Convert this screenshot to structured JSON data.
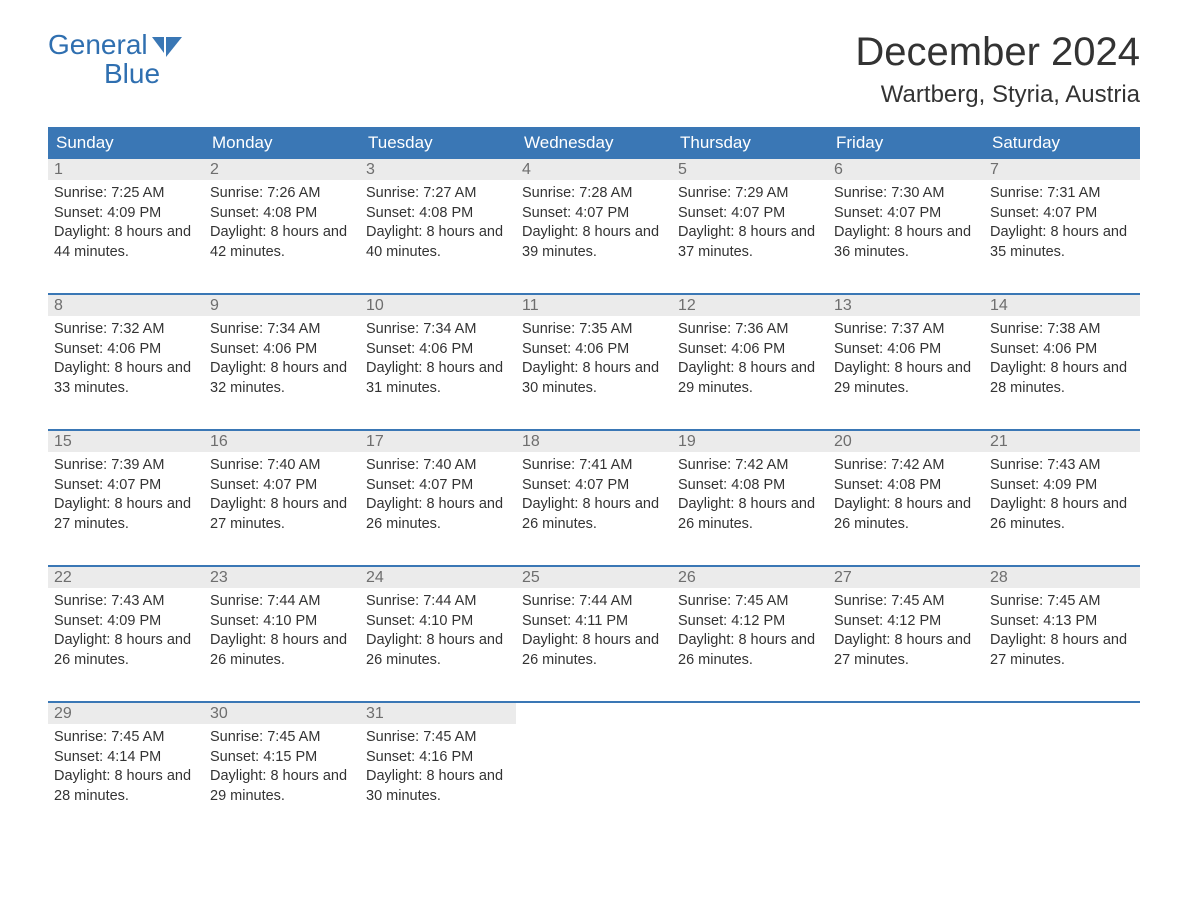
{
  "brand": {
    "line1": "General",
    "line2": "Blue",
    "accent": "#3a77b5"
  },
  "title": "December 2024",
  "location": "Wartberg, Styria, Austria",
  "colors": {
    "header_bg": "#3a77b5",
    "header_text": "#ffffff",
    "daynum_bg": "#ebebeb",
    "daynum_text": "#6e6e6e",
    "body_bg": "#ffffff",
    "body_text": "#333333",
    "week_divider": "#3a77b5"
  },
  "dow": [
    "Sunday",
    "Monday",
    "Tuesday",
    "Wednesday",
    "Thursday",
    "Friday",
    "Saturday"
  ],
  "weeks": [
    [
      {
        "n": "1",
        "sunrise": "7:25 AM",
        "sunset": "4:09 PM",
        "dl": "8 hours and 44 minutes."
      },
      {
        "n": "2",
        "sunrise": "7:26 AM",
        "sunset": "4:08 PM",
        "dl": "8 hours and 42 minutes."
      },
      {
        "n": "3",
        "sunrise": "7:27 AM",
        "sunset": "4:08 PM",
        "dl": "8 hours and 40 minutes."
      },
      {
        "n": "4",
        "sunrise": "7:28 AM",
        "sunset": "4:07 PM",
        "dl": "8 hours and 39 minutes."
      },
      {
        "n": "5",
        "sunrise": "7:29 AM",
        "sunset": "4:07 PM",
        "dl": "8 hours and 37 minutes."
      },
      {
        "n": "6",
        "sunrise": "7:30 AM",
        "sunset": "4:07 PM",
        "dl": "8 hours and 36 minutes."
      },
      {
        "n": "7",
        "sunrise": "7:31 AM",
        "sunset": "4:07 PM",
        "dl": "8 hours and 35 minutes."
      }
    ],
    [
      {
        "n": "8",
        "sunrise": "7:32 AM",
        "sunset": "4:06 PM",
        "dl": "8 hours and 33 minutes."
      },
      {
        "n": "9",
        "sunrise": "7:34 AM",
        "sunset": "4:06 PM",
        "dl": "8 hours and 32 minutes."
      },
      {
        "n": "10",
        "sunrise": "7:34 AM",
        "sunset": "4:06 PM",
        "dl": "8 hours and 31 minutes."
      },
      {
        "n": "11",
        "sunrise": "7:35 AM",
        "sunset": "4:06 PM",
        "dl": "8 hours and 30 minutes."
      },
      {
        "n": "12",
        "sunrise": "7:36 AM",
        "sunset": "4:06 PM",
        "dl": "8 hours and 29 minutes."
      },
      {
        "n": "13",
        "sunrise": "7:37 AM",
        "sunset": "4:06 PM",
        "dl": "8 hours and 29 minutes."
      },
      {
        "n": "14",
        "sunrise": "7:38 AM",
        "sunset": "4:06 PM",
        "dl": "8 hours and 28 minutes."
      }
    ],
    [
      {
        "n": "15",
        "sunrise": "7:39 AM",
        "sunset": "4:07 PM",
        "dl": "8 hours and 27 minutes."
      },
      {
        "n": "16",
        "sunrise": "7:40 AM",
        "sunset": "4:07 PM",
        "dl": "8 hours and 27 minutes."
      },
      {
        "n": "17",
        "sunrise": "7:40 AM",
        "sunset": "4:07 PM",
        "dl": "8 hours and 26 minutes."
      },
      {
        "n": "18",
        "sunrise": "7:41 AM",
        "sunset": "4:07 PM",
        "dl": "8 hours and 26 minutes."
      },
      {
        "n": "19",
        "sunrise": "7:42 AM",
        "sunset": "4:08 PM",
        "dl": "8 hours and 26 minutes."
      },
      {
        "n": "20",
        "sunrise": "7:42 AM",
        "sunset": "4:08 PM",
        "dl": "8 hours and 26 minutes."
      },
      {
        "n": "21",
        "sunrise": "7:43 AM",
        "sunset": "4:09 PM",
        "dl": "8 hours and 26 minutes."
      }
    ],
    [
      {
        "n": "22",
        "sunrise": "7:43 AM",
        "sunset": "4:09 PM",
        "dl": "8 hours and 26 minutes."
      },
      {
        "n": "23",
        "sunrise": "7:44 AM",
        "sunset": "4:10 PM",
        "dl": "8 hours and 26 minutes."
      },
      {
        "n": "24",
        "sunrise": "7:44 AM",
        "sunset": "4:10 PM",
        "dl": "8 hours and 26 minutes."
      },
      {
        "n": "25",
        "sunrise": "7:44 AM",
        "sunset": "4:11 PM",
        "dl": "8 hours and 26 minutes."
      },
      {
        "n": "26",
        "sunrise": "7:45 AM",
        "sunset": "4:12 PM",
        "dl": "8 hours and 26 minutes."
      },
      {
        "n": "27",
        "sunrise": "7:45 AM",
        "sunset": "4:12 PM",
        "dl": "8 hours and 27 minutes."
      },
      {
        "n": "28",
        "sunrise": "7:45 AM",
        "sunset": "4:13 PM",
        "dl": "8 hours and 27 minutes."
      }
    ],
    [
      {
        "n": "29",
        "sunrise": "7:45 AM",
        "sunset": "4:14 PM",
        "dl": "8 hours and 28 minutes."
      },
      {
        "n": "30",
        "sunrise": "7:45 AM",
        "sunset": "4:15 PM",
        "dl": "8 hours and 29 minutes."
      },
      {
        "n": "31",
        "sunrise": "7:45 AM",
        "sunset": "4:16 PM",
        "dl": "8 hours and 30 minutes."
      },
      null,
      null,
      null,
      null
    ]
  ],
  "labels": {
    "sunrise_prefix": "Sunrise: ",
    "sunset_prefix": "Sunset: ",
    "daylight_prefix": "Daylight: "
  }
}
